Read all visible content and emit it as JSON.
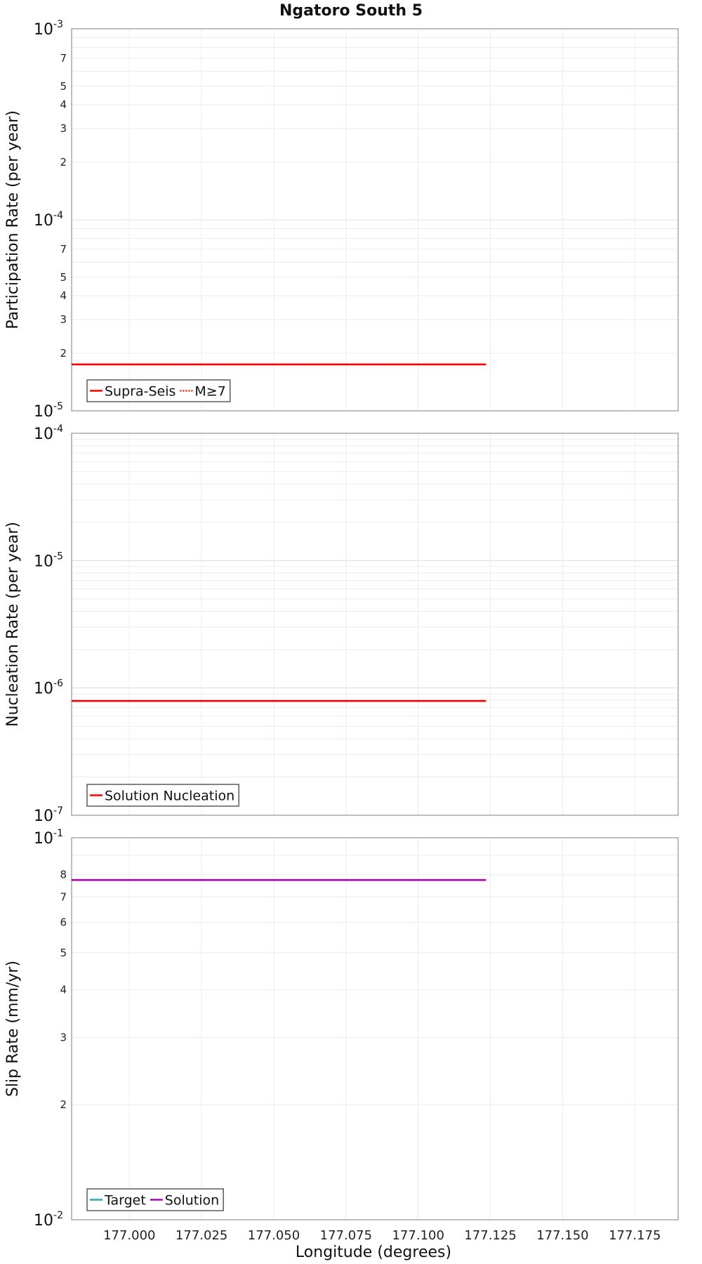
{
  "title": "Ngatoro South 5",
  "xaxis": {
    "label": "Longitude (degrees)",
    "range": [
      176.98,
      177.19
    ],
    "ticks": [
      177.0,
      177.025,
      177.05,
      177.075,
      177.1,
      177.125,
      177.15,
      177.175
    ],
    "tick_labels": [
      "177.000",
      "177.025",
      "177.050",
      "177.075",
      "177.100",
      "177.125",
      "177.150",
      "177.175"
    ]
  },
  "chart_data": [
    {
      "type": "line",
      "ylabel": "Participation Rate (per year)",
      "yscale": "log",
      "ylim": [
        1e-05,
        0.001
      ],
      "major_ticks": [
        {
          "value": 0.001,
          "base": "10",
          "exp": "-3"
        },
        {
          "value": 0.0001,
          "base": "10",
          "exp": "-4"
        },
        {
          "value": 1e-05,
          "base": "10",
          "exp": "-5"
        }
      ],
      "minor_tick_labels": [
        {
          "value": 0.0007,
          "label": "7"
        },
        {
          "value": 0.0005,
          "label": "5"
        },
        {
          "value": 0.0004,
          "label": "4"
        },
        {
          "value": 0.0003,
          "label": "3"
        },
        {
          "value": 0.0002,
          "label": "2"
        },
        {
          "value": 7e-05,
          "label": "7"
        },
        {
          "value": 5e-05,
          "label": "5"
        },
        {
          "value": 4e-05,
          "label": "4"
        },
        {
          "value": 3e-05,
          "label": "3"
        },
        {
          "value": 2e-05,
          "label": "2"
        }
      ],
      "series": [
        {
          "name": "Supra-Seis",
          "color": "#ff0000",
          "style": "solid",
          "x": [
            176.98,
            177.1235
          ],
          "y": [
            1.75e-05,
            1.75e-05
          ]
        },
        {
          "name": "M≥7",
          "color": "#ff0000",
          "style": "dotted",
          "x": [
            176.98,
            177.1235
          ],
          "y": [
            1.75e-05,
            1.75e-05
          ]
        }
      ],
      "legend": {
        "position": "bottom-left",
        "entries": [
          "Supra-Seis",
          "M≥7"
        ]
      }
    },
    {
      "type": "line",
      "ylabel": "Nucleation Rate (per year)",
      "yscale": "log",
      "ylim": [
        1e-07,
        0.0001
      ],
      "major_ticks": [
        {
          "value": 0.0001,
          "base": "10",
          "exp": "-4"
        },
        {
          "value": 1e-05,
          "base": "10",
          "exp": "-5"
        },
        {
          "value": 1e-06,
          "base": "10",
          "exp": "-6"
        },
        {
          "value": 1e-07,
          "base": "10",
          "exp": "-7"
        }
      ],
      "minor_tick_labels": [],
      "series": [
        {
          "name": "Solution Nucleation",
          "color": "#ff0000",
          "style": "solid",
          "x": [
            176.98,
            177.1235
          ],
          "y": [
            7.9e-07,
            7.9e-07
          ]
        }
      ],
      "legend": {
        "position": "bottom-left",
        "entries": [
          "Solution Nucleation"
        ]
      }
    },
    {
      "type": "line",
      "ylabel": "Slip Rate (mm/yr)",
      "yscale": "log",
      "ylim": [
        0.01,
        0.1
      ],
      "major_ticks": [
        {
          "value": 0.1,
          "base": "10",
          "exp": "-1"
        },
        {
          "value": 0.01,
          "base": "10",
          "exp": "-2"
        }
      ],
      "minor_tick_labels": [
        {
          "value": 0.08,
          "label": "8"
        },
        {
          "value": 0.07,
          "label": "7"
        },
        {
          "value": 0.06,
          "label": "6"
        },
        {
          "value": 0.05,
          "label": "5"
        },
        {
          "value": 0.04,
          "label": "4"
        },
        {
          "value": 0.03,
          "label": "3"
        },
        {
          "value": 0.02,
          "label": "2"
        }
      ],
      "series": [
        {
          "name": "Target",
          "color": "#20b2aa",
          "style": "solid",
          "x": [],
          "y": []
        },
        {
          "name": "Solution",
          "color": "#b000b0",
          "style": "solid",
          "x": [
            176.98,
            177.1235
          ],
          "y": [
            0.0775,
            0.0775
          ]
        }
      ],
      "legend": {
        "position": "bottom-left",
        "entries": [
          "Target",
          "Solution"
        ]
      }
    }
  ]
}
